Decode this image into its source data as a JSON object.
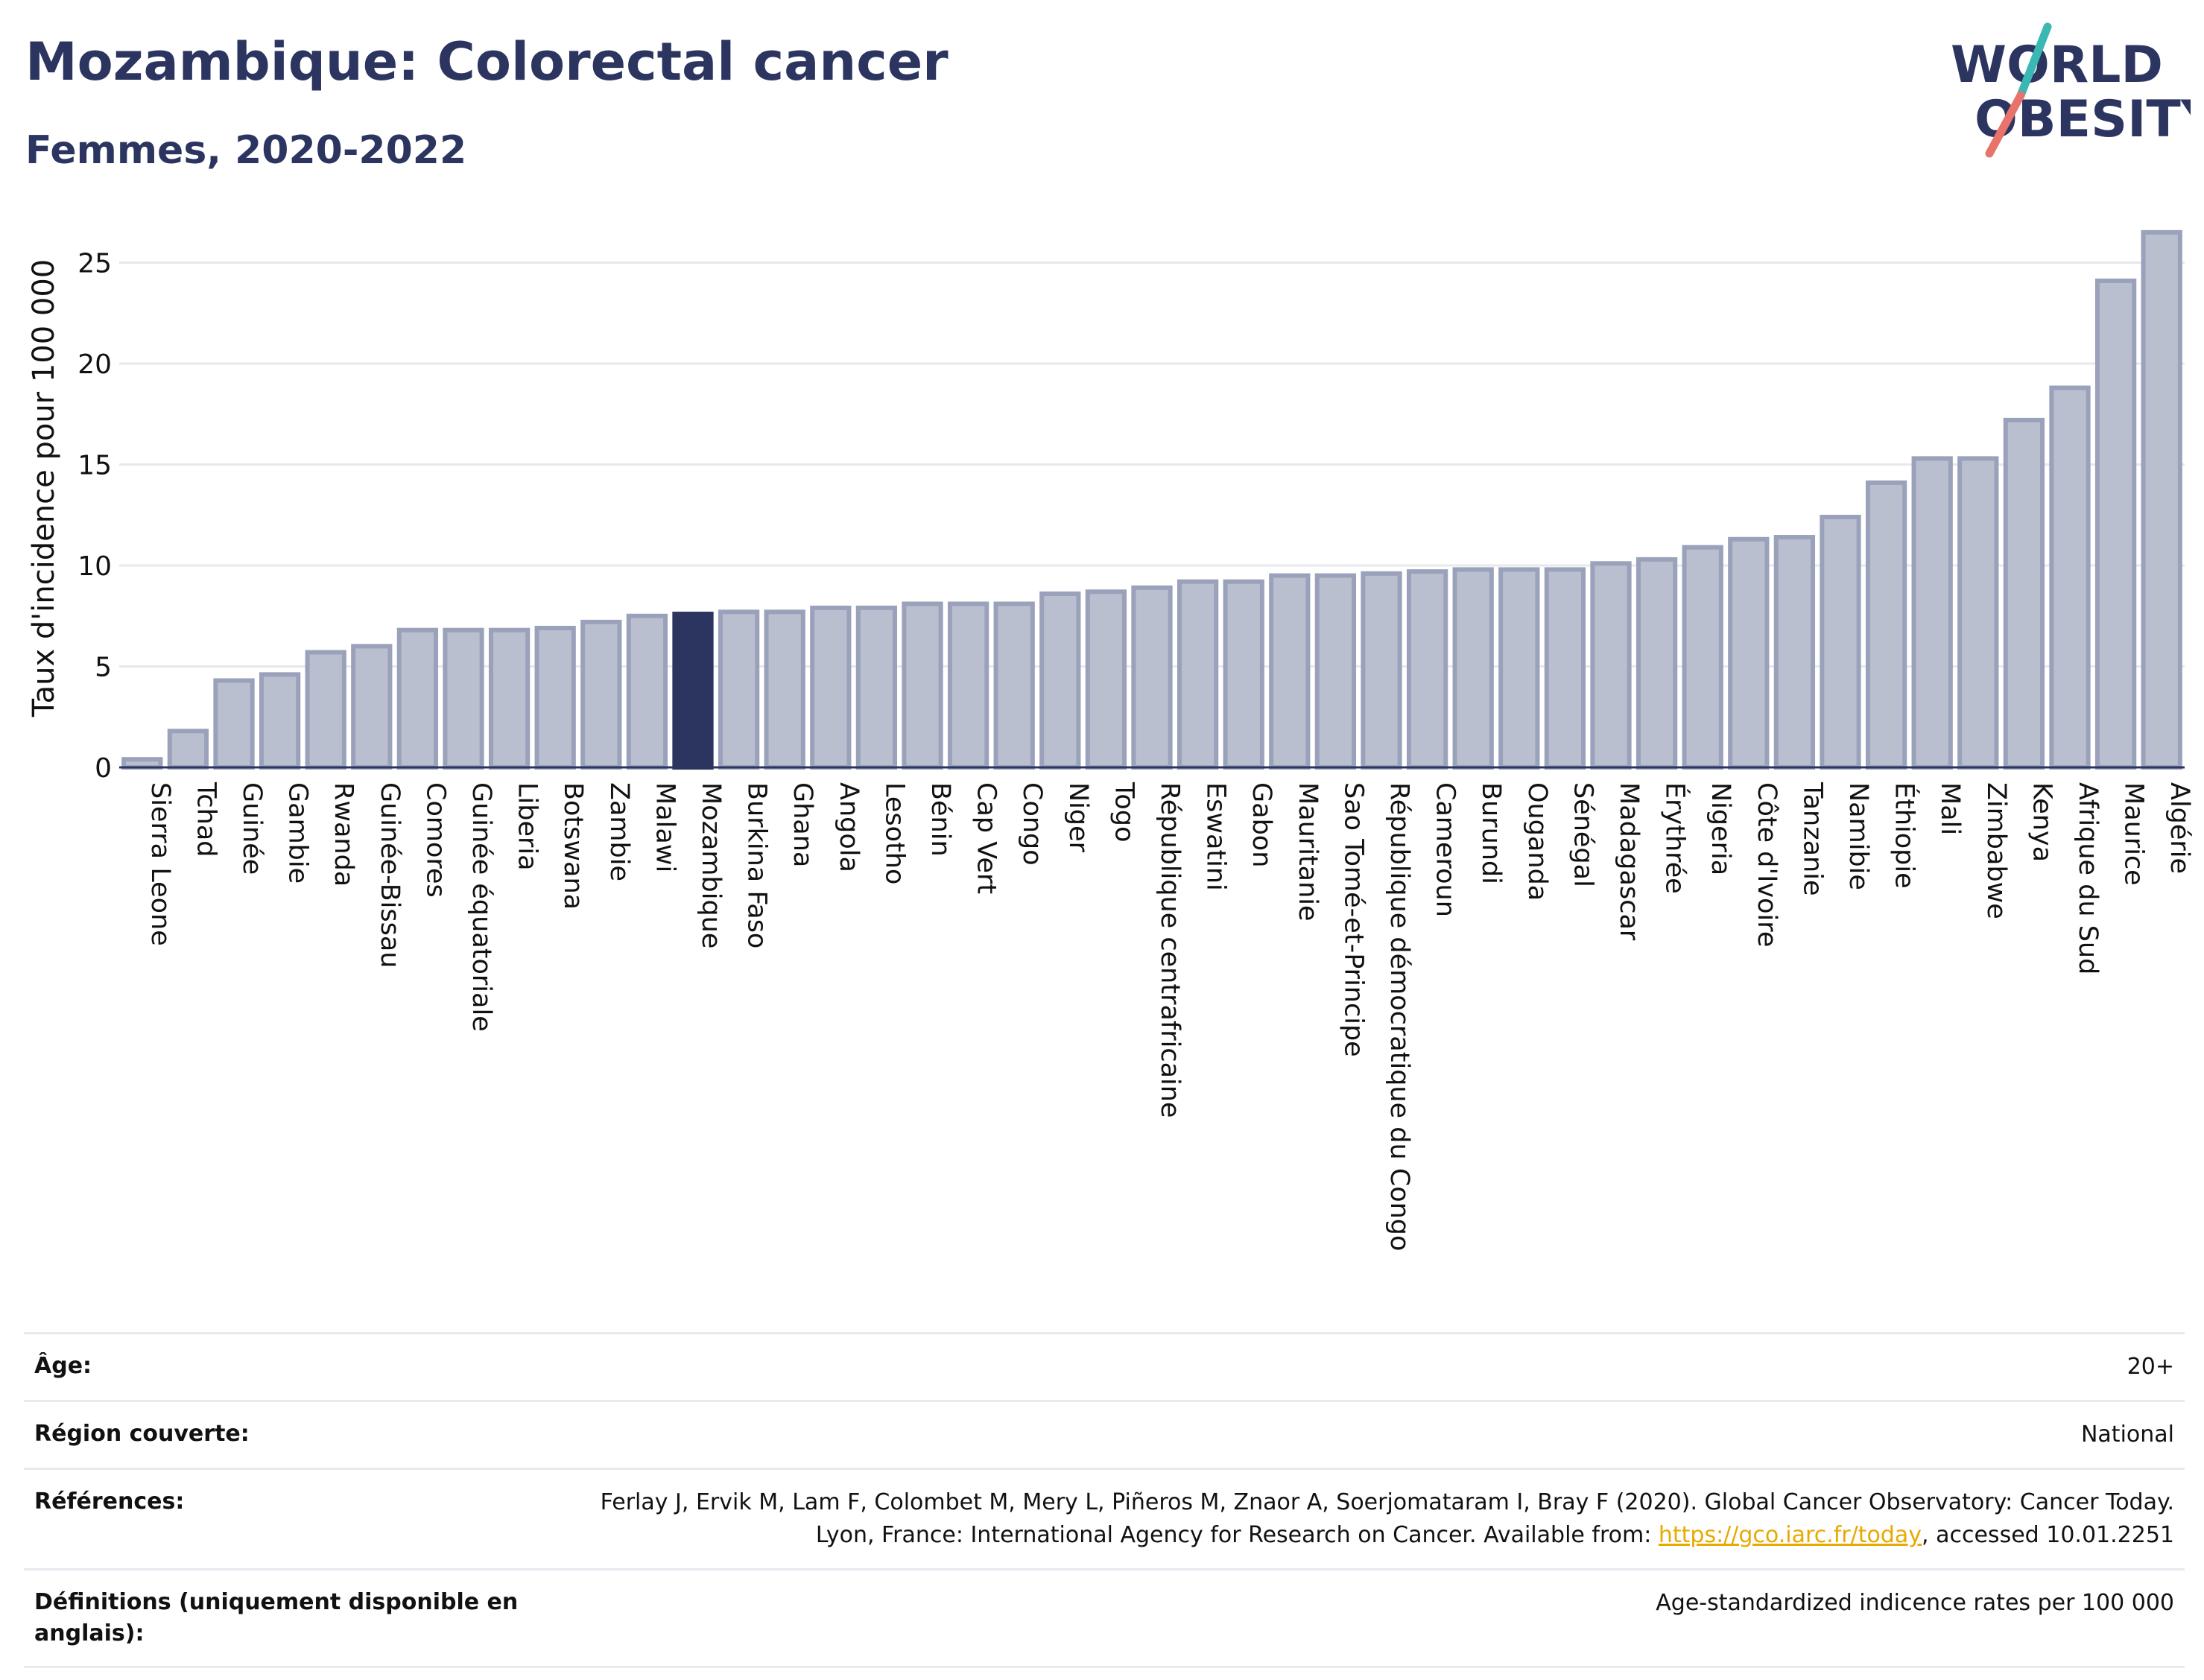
{
  "header": {
    "title": "Mozambique: Colorectal cancer",
    "subtitle": "Femmes, 2020-2022",
    "logo_line1": "WORLD",
    "logo_line2": "OBESITY"
  },
  "colors": {
    "bar": "#babfcf",
    "bar_border": "#9aa1ba",
    "highlight": "#2b3560",
    "grid": "#e6e8ee",
    "logo_teal": "#3bb8b3",
    "logo_coral": "#e8736a"
  },
  "chart_data": {
    "type": "bar",
    "ylabel": "Taux d'incidence pour 100 000",
    "ylim": [
      0,
      27
    ],
    "yticks": [
      0,
      5,
      10,
      15,
      20,
      25
    ],
    "grid": true,
    "highlight": "Mozambique",
    "categories": [
      "Sierra Leone",
      "Tchad",
      "Guinée",
      "Gambie",
      "Rwanda",
      "Guinée-Bissau",
      "Comores",
      "Guinée équatoriale",
      "Liberia",
      "Botswana",
      "Zambie",
      "Malawi",
      "Mozambique",
      "Burkina Faso",
      "Ghana",
      "Angola",
      "Lesotho",
      "Bénin",
      "Cap Vert",
      "Congo",
      "Niger",
      "Togo",
      "République centrafricaine",
      "Eswatini",
      "Gabon",
      "Mauritanie",
      "Sao Tomé-et-Principe",
      "République démocratique du Congo",
      "Cameroun",
      "Burundi",
      "Ouganda",
      "Sénégal",
      "Madagascar",
      "Érythrée",
      "Nigeria",
      "Côte d'Ivoire",
      "Tanzanie",
      "Namibie",
      "Éthiopie",
      "Mali",
      "Zimbabwe",
      "Kenya",
      "Afrique du Sud",
      "Maurice",
      "Algérie"
    ],
    "values": [
      0.4,
      1.8,
      4.3,
      4.6,
      5.7,
      6.0,
      6.8,
      6.8,
      6.8,
      6.9,
      7.2,
      7.5,
      7.6,
      7.7,
      7.7,
      7.9,
      7.9,
      8.1,
      8.1,
      8.1,
      8.6,
      8.7,
      8.9,
      9.2,
      9.2,
      9.5,
      9.5,
      9.6,
      9.7,
      9.8,
      9.8,
      9.8,
      10.1,
      10.3,
      10.9,
      11.3,
      11.4,
      12.4,
      14.1,
      15.3,
      15.3,
      17.2,
      18.8,
      24.1,
      26.5
    ]
  },
  "info": {
    "age_label": "Âge:",
    "age_value": "20+",
    "region_label": "Région couverte:",
    "region_value": "National",
    "refs_label": "Références:",
    "refs_text_before": "Ferlay J, Ervik M, Lam F, Colombet M, Mery L, Piñeros M, Znaor A, Soerjomataram I, Bray F (2020). Global Cancer Observatory: Cancer Today. Lyon, France: International Agency for Research on Cancer. Available from: ",
    "refs_link": "https://gco.iarc.fr/today",
    "refs_text_after": ", accessed 10.01.2251",
    "defs_label": "Définitions (uniquement disponible en anglais):",
    "defs_value": "Age-standardized indicence rates per 100 000"
  }
}
